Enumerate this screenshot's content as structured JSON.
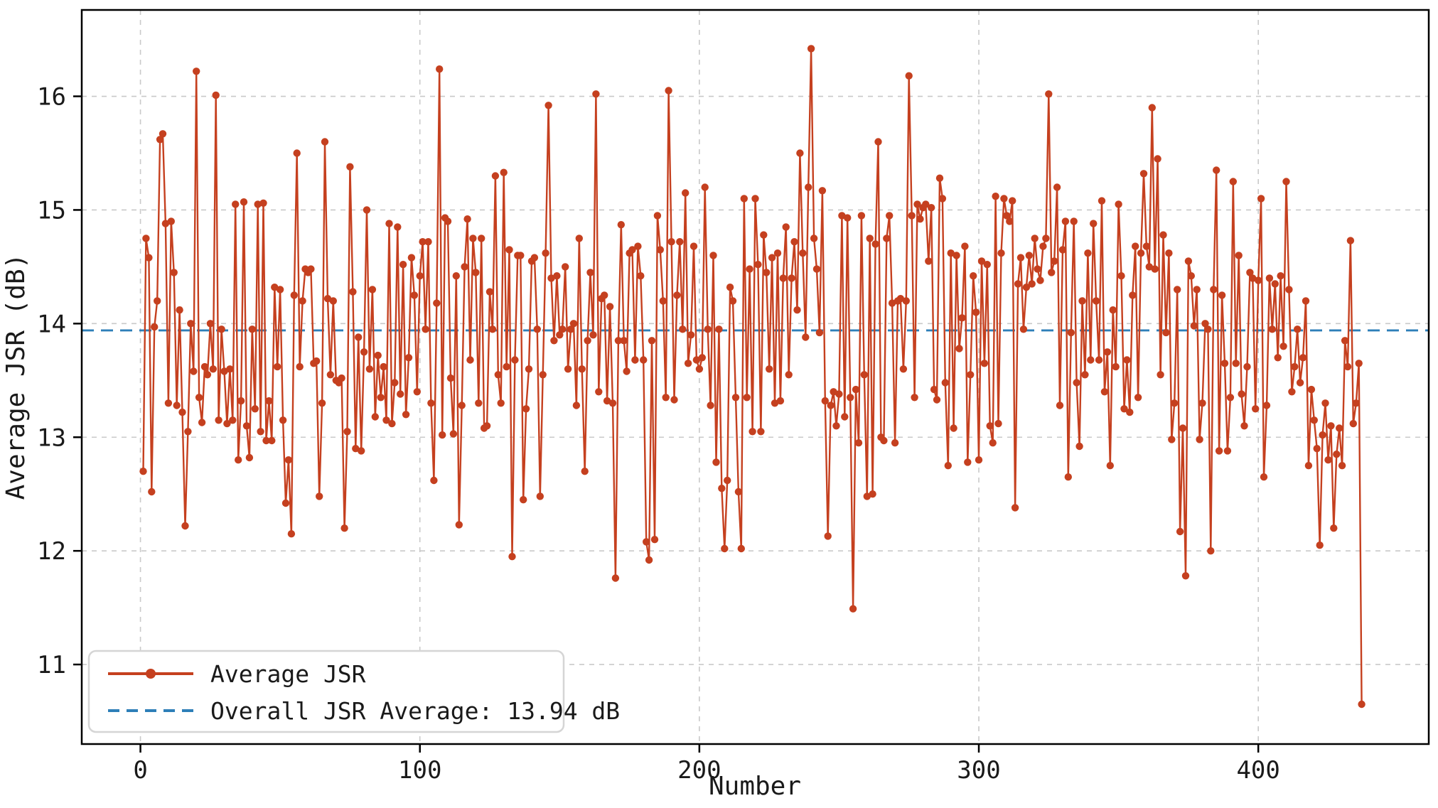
{
  "figure": {
    "background": "#ffffff",
    "xlabel": "Number",
    "ylabel": "Average JSR (dB)"
  },
  "legend": {
    "series_label": "Average JSR",
    "average_label": "Overall JSR Average: 13.94 dB"
  },
  "colors": {
    "series_line": "#c5401f",
    "series_marker": "#c5401f",
    "average_line": "#2e7fb8",
    "grid": "#c9c9c9",
    "spine": "#000000",
    "legend_border": "#d5d5d5",
    "legend_background": "#ffffff"
  },
  "chart_data": {
    "type": "line",
    "title": "",
    "xlabel": "Number",
    "ylabel": "Average JSR (dB)",
    "x_ticks": [
      0,
      100,
      200,
      300,
      400
    ],
    "y_ticks": [
      11,
      12,
      13,
      14,
      15,
      16
    ],
    "xlim": [
      -21,
      461
    ],
    "ylim": [
      10.3,
      16.76
    ],
    "grid": true,
    "grid_style": "dashed",
    "legend_position": "lower left",
    "overall_average": 13.94,
    "average_line": {
      "label": "Overall JSR Average: 13.94 dB",
      "value": 13.94,
      "style": "dashed"
    },
    "series": [
      {
        "name": "Average JSR",
        "marker": "circle",
        "x_start": 1,
        "values": [
          12.7,
          14.75,
          14.58,
          12.52,
          13.97,
          14.2,
          15.62,
          15.67,
          14.88,
          13.3,
          14.9,
          14.45,
          13.28,
          14.12,
          13.22,
          12.22,
          13.05,
          14.0,
          13.58,
          16.22,
          13.35,
          13.13,
          13.62,
          13.55,
          14.0,
          13.6,
          16.01,
          13.15,
          13.95,
          13.58,
          13.12,
          13.6,
          13.15,
          15.05,
          12.8,
          13.32,
          15.07,
          13.1,
          12.82,
          13.95,
          13.25,
          15.05,
          13.05,
          15.06,
          12.97,
          13.32,
          12.97,
          14.32,
          13.62,
          14.3,
          13.15,
          12.42,
          12.8,
          12.15,
          14.25,
          15.5,
          13.62,
          14.2,
          14.48,
          14.45,
          14.48,
          13.65,
          13.67,
          12.48,
          13.3,
          15.6,
          14.22,
          13.55,
          14.2,
          13.5,
          13.48,
          13.52,
          12.2,
          13.05,
          15.38,
          14.28,
          12.9,
          13.88,
          12.88,
          13.75,
          15.0,
          13.6,
          14.3,
          13.18,
          13.72,
          13.35,
          13.62,
          13.15,
          14.88,
          13.12,
          13.48,
          14.85,
          13.38,
          14.52,
          13.2,
          13.7,
          14.58,
          14.25,
          13.4,
          14.42,
          14.72,
          13.95,
          14.72,
          13.3,
          12.62,
          14.18,
          16.24,
          13.02,
          14.93,
          14.9,
          13.52,
          13.03,
          14.42,
          12.23,
          13.28,
          14.5,
          14.92,
          13.68,
          14.75,
          14.45,
          13.3,
          14.75,
          13.08,
          13.1,
          14.28,
          13.95,
          15.3,
          13.55,
          13.3,
          15.33,
          13.62,
          14.65,
          11.95,
          13.68,
          14.6,
          14.6,
          12.45,
          13.25,
          13.6,
          14.55,
          14.58,
          13.95,
          12.48,
          13.55,
          14.62,
          15.92,
          14.4,
          13.85,
          14.42,
          13.9,
          13.95,
          14.5,
          13.6,
          13.95,
          14.0,
          13.28,
          14.75,
          13.6,
          12.7,
          13.85,
          14.45,
          13.9,
          16.02,
          13.4,
          14.22,
          14.25,
          13.32,
          14.15,
          13.3,
          11.76,
          13.85,
          14.87,
          13.85,
          13.58,
          14.62,
          14.65,
          13.68,
          14.68,
          14.42,
          13.68,
          12.08,
          11.92,
          13.85,
          12.1,
          14.95,
          14.65,
          14.2,
          13.35,
          16.05,
          14.72,
          13.33,
          14.25,
          14.72,
          13.95,
          15.15,
          13.65,
          13.9,
          14.68,
          13.68,
          13.6,
          13.7,
          15.2,
          13.95,
          13.28,
          14.6,
          12.78,
          13.95,
          12.55,
          12.02,
          12.62,
          14.32,
          14.2,
          13.35,
          12.52,
          12.02,
          15.1,
          13.35,
          14.48,
          13.05,
          15.1,
          14.52,
          13.05,
          14.78,
          14.45,
          13.6,
          14.58,
          13.3,
          14.62,
          13.32,
          14.4,
          14.85,
          13.55,
          14.4,
          14.72,
          14.12,
          15.5,
          14.62,
          13.88,
          15.2,
          16.42,
          14.75,
          14.48,
          13.92,
          15.17,
          13.32,
          12.13,
          13.28,
          13.4,
          13.1,
          13.38,
          14.95,
          13.18,
          14.93,
          13.35,
          11.49,
          13.42,
          12.95,
          14.95,
          13.55,
          12.48,
          14.75,
          12.5,
          14.7,
          15.6,
          13.0,
          12.97,
          14.75,
          14.95,
          14.18,
          12.95,
          14.2,
          14.22,
          13.6,
          14.2,
          16.18,
          14.95,
          13.35,
          15.05,
          14.92,
          15.02,
          15.05,
          14.55,
          15.02,
          13.42,
          13.33,
          15.28,
          15.1,
          13.48,
          12.75,
          14.62,
          13.08,
          14.6,
          13.78,
          14.05,
          14.68,
          12.78,
          13.55,
          14.42,
          14.1,
          12.8,
          14.55,
          13.65,
          14.52,
          13.1,
          12.95,
          15.12,
          13.12,
          14.62,
          15.1,
          14.95,
          14.9,
          15.08,
          12.38,
          14.35,
          14.58,
          13.95,
          14.32,
          14.6,
          14.35,
          14.75,
          14.48,
          14.38,
          14.68,
          14.75,
          16.02,
          14.45,
          14.55,
          15.2,
          13.28,
          14.65,
          14.9,
          12.65,
          13.92,
          14.9,
          13.48,
          12.92,
          14.2,
          13.55,
          14.62,
          13.68,
          14.88,
          14.2,
          13.68,
          15.08,
          13.4,
          13.75,
          12.75,
          14.12,
          13.62,
          15.05,
          14.42,
          13.25,
          13.68,
          13.22,
          14.25,
          14.68,
          13.35,
          14.62,
          15.32,
          14.68,
          14.5,
          15.9,
          14.48,
          15.45,
          13.55,
          14.78,
          13.92,
          14.62,
          12.98,
          13.3,
          14.3,
          12.17,
          13.08,
          11.78,
          14.55,
          14.42,
          13.98,
          14.3,
          12.98,
          13.3,
          14.0,
          13.95,
          12.0,
          14.3,
          15.35,
          12.88,
          14.25,
          13.65,
          12.88,
          13.35,
          15.25,
          13.65,
          14.6,
          13.38,
          13.1,
          13.62,
          14.45,
          14.4,
          13.25,
          14.38,
          15.1,
          12.65,
          13.28,
          14.4,
          13.95,
          14.35,
          13.7,
          14.42,
          13.8,
          15.25,
          14.3,
          13.4,
          13.62,
          13.95,
          13.48,
          13.7,
          14.2,
          12.75,
          13.42,
          13.15,
          12.9,
          12.05,
          13.02,
          13.3,
          12.8,
          13.1,
          12.2,
          12.85,
          13.08,
          12.75,
          13.85,
          13.62,
          14.73,
          13.12,
          13.3,
          13.65,
          10.65
        ]
      }
    ]
  }
}
